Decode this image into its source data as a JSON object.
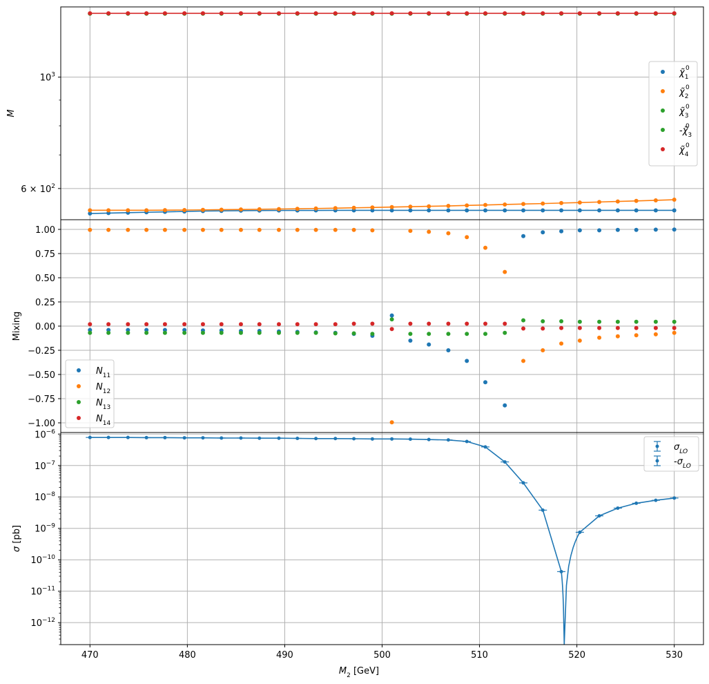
{
  "chart_data": [
    {
      "type": "scatter",
      "panel": "masses",
      "ylabel": "M",
      "yscale": "log",
      "ylim": [
        520,
        1380
      ],
      "yticks": [
        {
          "v": 1000,
          "label": "10",
          "sup": "3"
        },
        {
          "v": 600,
          "label": "6 × 10",
          "sup": "2"
        }
      ],
      "minor_yticks": [
        700,
        800,
        900
      ],
      "grid": true,
      "legend_position": "right",
      "x": [
        470.0,
        471.9,
        473.9,
        475.8,
        477.7,
        479.7,
        481.6,
        483.5,
        485.5,
        487.4,
        489.4,
        491.3,
        493.2,
        495.2,
        497.1,
        499.0,
        501.0,
        502.9,
        504.8,
        506.8,
        508.7,
        510.6,
        512.6,
        514.5,
        516.5,
        518.4,
        520.3,
        522.3,
        524.2,
        526.1,
        528.1,
        530.0
      ],
      "series": [
        {
          "name": "χ̃⁰₁",
          "color": "#1f77b4",
          "line": true,
          "values": [
            535,
            536,
            537,
            538,
            539,
            540,
            541,
            541.5,
            542,
            542.3,
            542.5,
            542.6,
            542.7,
            542.8,
            542.8,
            542.8,
            542.8,
            542.8,
            542.8,
            542.8,
            542.8,
            542.8,
            542.8,
            542.8,
            542.8,
            542.8,
            542.8,
            542.8,
            542.8,
            542.8,
            542.8,
            542.8
          ]
        },
        {
          "name": "χ̃⁰₂",
          "color": "#ff7f0e",
          "line": true,
          "values": [
            543,
            543,
            543,
            543,
            543.3,
            543.6,
            544,
            544.5,
            545,
            545.5,
            546,
            546.7,
            547.5,
            548.3,
            549.2,
            550,
            551,
            552,
            553,
            554,
            555.2,
            556.4,
            557.6,
            558.8,
            560,
            561.3,
            562.6,
            564,
            565.4,
            566.8,
            568.3,
            570
          ]
        },
        {
          "name": "χ̃⁰₃",
          "color": "#2ca02c",
          "line": false,
          "values": [
            1338,
            1338,
            1338,
            1338,
            1338,
            1338,
            1338,
            1338,
            1338,
            1338,
            1338,
            1338,
            1338,
            1338,
            1338,
            1338,
            1338,
            1338,
            1338,
            1338,
            1338,
            1338,
            1338,
            1338,
            1338,
            1338,
            1338,
            1338,
            1338,
            1338,
            1338,
            1338
          ]
        },
        {
          "name": "-χ̃⁰₃",
          "color": "#2ca02c",
          "line": false,
          "values": [
            1338,
            1338,
            1338,
            1338,
            1338,
            1338,
            1338,
            1338,
            1338,
            1338,
            1338,
            1338,
            1338,
            1338,
            1338,
            1338,
            1338,
            1338,
            1338,
            1338,
            1338,
            1338,
            1338,
            1338,
            1338,
            1338,
            1338,
            1338,
            1338,
            1338,
            1338,
            1338
          ]
        },
        {
          "name": "χ̃⁰₄",
          "color": "#d62728",
          "line": true,
          "values": [
            1340,
            1340,
            1340,
            1340,
            1340,
            1340,
            1340,
            1340,
            1340,
            1340,
            1340,
            1340,
            1340,
            1340,
            1340,
            1340,
            1340,
            1340,
            1340,
            1340,
            1340,
            1340,
            1340,
            1340,
            1340,
            1340,
            1340,
            1340,
            1340,
            1340,
            1340,
            1340
          ]
        }
      ]
    },
    {
      "type": "scatter",
      "panel": "mixing",
      "ylabel": "Mixing",
      "ylim": [
        -1.1,
        1.1
      ],
      "yticks": [
        1.0,
        0.75,
        0.5,
        0.25,
        0.0,
        -0.25,
        -0.5,
        -0.75,
        -1.0
      ],
      "ytick_labels": [
        "1.00",
        "0.75",
        "0.50",
        "0.25",
        "0.00",
        "−0.25",
        "−0.50",
        "−0.75",
        "−1.00"
      ],
      "grid": true,
      "legend_position": "lower-left",
      "x": [
        470.0,
        471.9,
        473.9,
        475.8,
        477.7,
        479.7,
        481.6,
        483.5,
        485.5,
        487.4,
        489.4,
        491.3,
        493.2,
        495.2,
        497.1,
        499.0,
        501.0,
        502.9,
        504.8,
        506.8,
        508.7,
        510.6,
        512.6,
        514.5,
        516.5,
        518.4,
        520.3,
        522.3,
        524.2,
        526.1,
        528.1,
        530.0
      ],
      "series": [
        {
          "name": "N11",
          "color": "#1f77b4",
          "values": [
            -0.04,
            -0.04,
            -0.04,
            -0.04,
            -0.04,
            -0.04,
            -0.045,
            -0.045,
            -0.05,
            -0.05,
            -0.055,
            -0.06,
            -0.065,
            -0.07,
            -0.08,
            -0.1,
            0.11,
            -0.15,
            -0.19,
            -0.25,
            -0.36,
            -0.58,
            -0.82,
            0.93,
            0.97,
            0.98,
            0.99,
            0.99,
            0.995,
            0.995,
            0.997,
            0.998
          ]
        },
        {
          "name": "N12",
          "color": "#ff7f0e",
          "values": [
            0.995,
            0.995,
            0.995,
            0.995,
            0.995,
            0.995,
            0.995,
            0.995,
            0.995,
            0.995,
            0.995,
            0.995,
            0.995,
            0.995,
            0.995,
            0.99,
            -0.995,
            0.985,
            0.975,
            0.96,
            0.92,
            0.81,
            0.56,
            -0.36,
            -0.25,
            -0.18,
            -0.15,
            -0.12,
            -0.105,
            -0.095,
            -0.085,
            -0.07
          ]
        },
        {
          "name": "N13",
          "color": "#2ca02c",
          "values": [
            -0.07,
            -0.07,
            -0.07,
            -0.07,
            -0.07,
            -0.07,
            -0.07,
            -0.07,
            -0.07,
            -0.07,
            -0.07,
            -0.07,
            -0.07,
            -0.075,
            -0.075,
            -0.08,
            0.07,
            -0.08,
            -0.08,
            -0.08,
            -0.08,
            -0.08,
            -0.07,
            0.06,
            0.05,
            0.05,
            0.045,
            0.045,
            0.045,
            0.045,
            0.045,
            0.045
          ]
        },
        {
          "name": "N14",
          "color": "#d62728",
          "values": [
            0.02,
            0.02,
            0.02,
            0.02,
            0.02,
            0.02,
            0.02,
            0.02,
            0.02,
            0.02,
            0.02,
            0.02,
            0.02,
            0.02,
            0.025,
            0.025,
            -0.03,
            0.025,
            0.025,
            0.025,
            0.025,
            0.025,
            0.025,
            -0.025,
            -0.025,
            -0.02,
            -0.02,
            -0.02,
            -0.02,
            -0.02,
            -0.02,
            -0.02
          ]
        }
      ]
    },
    {
      "type": "line",
      "panel": "cross-section",
      "ylabel": "σ [pb]",
      "xlabel": "M₂ [GeV]",
      "yscale": "log",
      "ylim_exp": [
        -12.7,
        -5.95
      ],
      "yticks_exp": [
        -6,
        -7,
        -8,
        -9,
        -10,
        -11,
        -12
      ],
      "xlim": [
        467,
        533
      ],
      "xticks": [
        470,
        480,
        490,
        500,
        510,
        520,
        530
      ],
      "grid": true,
      "legend_position": "top-right",
      "zero_crossing_x": 518.7,
      "x": [
        470.0,
        471.9,
        473.9,
        475.8,
        477.7,
        479.7,
        481.6,
        483.5,
        485.5,
        487.4,
        489.4,
        491.3,
        493.2,
        495.2,
        497.1,
        499.0,
        501.0,
        502.9,
        504.8,
        506.8,
        508.7,
        510.6,
        512.6,
        514.5,
        516.5,
        518.4,
        520.3,
        522.3,
        524.2,
        526.1,
        528.1,
        530.0
      ],
      "series": [
        {
          "name": "σ_LO",
          "color": "#1f77b4",
          "error_bars": true,
          "values": [
            7.8e-07,
            7.8e-07,
            7.8e-07,
            7.7e-07,
            7.7e-07,
            7.6e-07,
            7.6e-07,
            7.5e-07,
            7.5e-07,
            7.4e-07,
            7.4e-07,
            7.3e-07,
            7.2e-07,
            7.2e-07,
            7.1e-07,
            7e-07,
            7e-07,
            6.9e-07,
            6.7e-07,
            6.5e-07,
            5.8e-07,
            3.9e-07,
            1.3e-07,
            2.8e-08,
            3.8e-09,
            4.2e-11,
            null,
            null,
            null,
            null,
            null,
            null
          ]
        },
        {
          "name": "-σ_LO",
          "color": "#1f77b4",
          "error_bars": true,
          "values": [
            null,
            null,
            null,
            null,
            null,
            null,
            null,
            null,
            null,
            null,
            null,
            null,
            null,
            null,
            null,
            null,
            null,
            null,
            null,
            null,
            null,
            null,
            null,
            null,
            null,
            null,
            7.5e-10,
            2.5e-09,
            4.4e-09,
            6.3e-09,
            7.8e-09,
            9.2e-09
          ]
        }
      ]
    }
  ]
}
